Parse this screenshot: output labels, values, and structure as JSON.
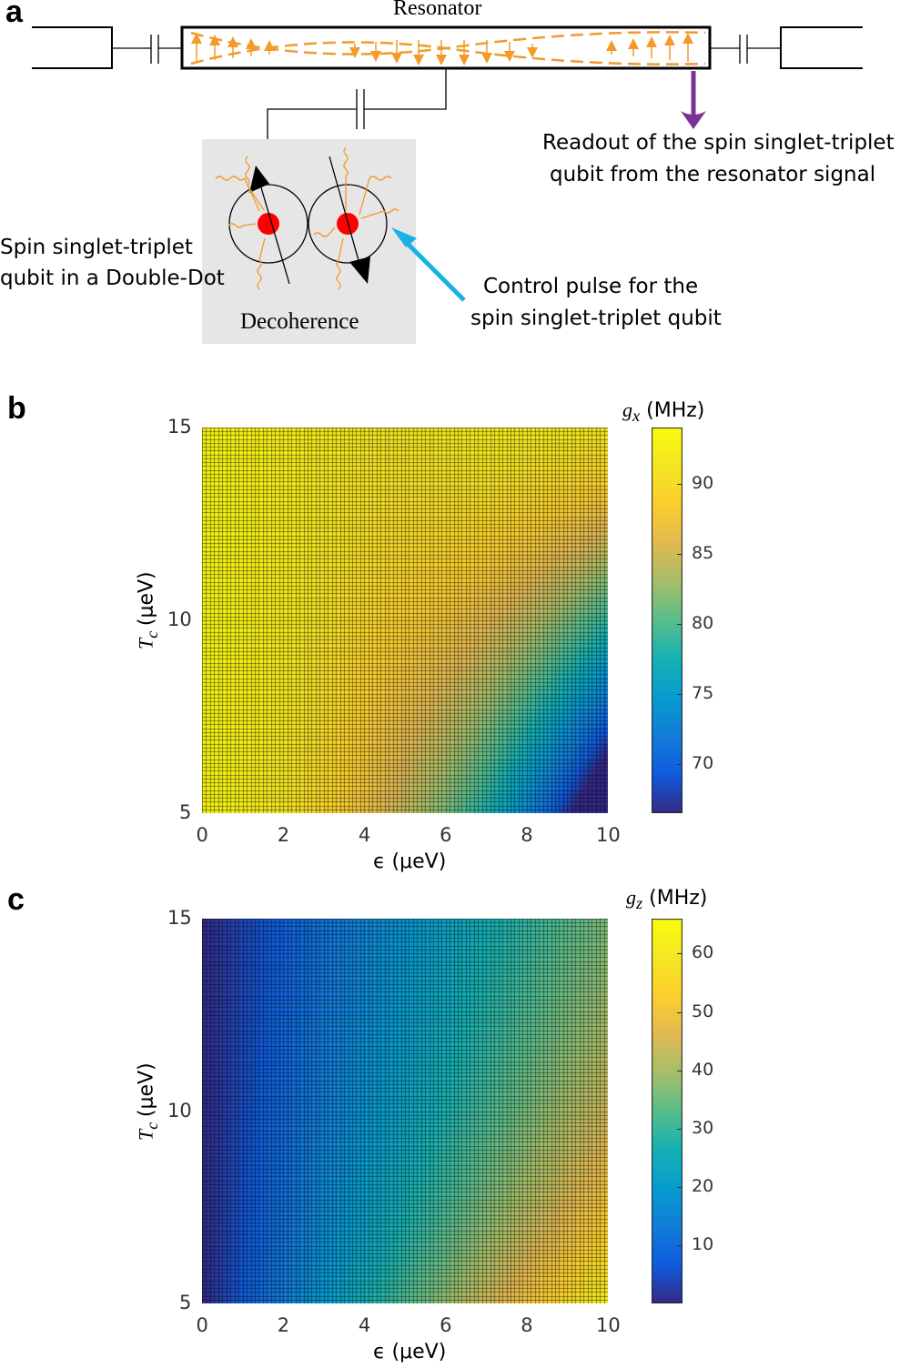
{
  "panel_a": {
    "letter": "a",
    "resonator_label": "Resonator",
    "readout_text_1": "Readout of the spin singlet-triplet",
    "readout_text_2": "qubit from the resonator signal",
    "qubit_text_1": "Spin singlet-triplet",
    "qubit_text_2": "qubit in a Double-Dot",
    "control_text_1": "Control pulse for the",
    "control_text_2": "spin singlet-triplet qubit",
    "decoherence_label": "Decoherence"
  },
  "panel_b": {
    "letter": "b"
  },
  "panel_c": {
    "letter": "c"
  },
  "chart_data": [
    {
      "type": "heatmap",
      "panel": "b",
      "quantity": "g_x",
      "colorbar_label": {
        "symbol": "g",
        "sub": "x",
        "unit": "(MHz)"
      },
      "xlabel": {
        "symbol": "ϵ",
        "unit": "(μeV)"
      },
      "ylabel": {
        "symbol": "T",
        "sub": "c",
        "unit": "(μeV)"
      },
      "xlim": [
        0,
        10
      ],
      "ylim": [
        5,
        15
      ],
      "xticks": [
        "0",
        "2",
        "4",
        "6",
        "8",
        "10"
      ],
      "yticks": [
        "5",
        "10",
        "15"
      ],
      "colorbar_range": [
        66.5,
        94
      ],
      "colorbar_ticks": [
        "70",
        "75",
        "80",
        "85",
        "90"
      ],
      "colormap": "parula",
      "grid": true,
      "grid_cells": [
        100,
        100
      ],
      "sample_values": [
        {
          "eps": 0,
          "tc": 5,
          "value": 92.5
        },
        {
          "eps": 0,
          "tc": 15,
          "value": 93.5
        },
        {
          "eps": 4,
          "tc": 5,
          "value": 90
        },
        {
          "eps": 10,
          "tc": 5,
          "value": 66.5
        },
        {
          "eps": 10,
          "tc": 15,
          "value": 89
        }
      ]
    },
    {
      "type": "heatmap",
      "panel": "c",
      "quantity": "g_z",
      "colorbar_label": {
        "symbol": "g",
        "sub": "z",
        "unit": "(MHz)"
      },
      "xlabel": {
        "symbol": "ϵ",
        "unit": "(μeV)"
      },
      "ylabel": {
        "symbol": "T",
        "sub": "c",
        "unit": "(μeV)"
      },
      "xlim": [
        0,
        10
      ],
      "ylim": [
        5,
        15
      ],
      "xticks": [
        "0",
        "2",
        "4",
        "6",
        "8",
        "10"
      ],
      "yticks": [
        "5",
        "10",
        "15"
      ],
      "colorbar_range": [
        0,
        66
      ],
      "colorbar_ticks": [
        "10",
        "20",
        "30",
        "40",
        "50",
        "60"
      ],
      "colormap": "parula",
      "grid": true,
      "grid_cells": [
        100,
        100
      ],
      "sample_values": [
        {
          "eps": 0,
          "tc": 5,
          "value": 0
        },
        {
          "eps": 0,
          "tc": 15,
          "value": 0
        },
        {
          "eps": 10,
          "tc": 5,
          "value": 66
        },
        {
          "eps": 10,
          "tc": 15,
          "value": 36
        }
      ]
    }
  ],
  "colors": {
    "orange": "#f39a2b",
    "purple": "#7b3294",
    "cyan": "#1ab0e8",
    "red": "#ff0000",
    "gray_box": "#e6e6e6"
  }
}
